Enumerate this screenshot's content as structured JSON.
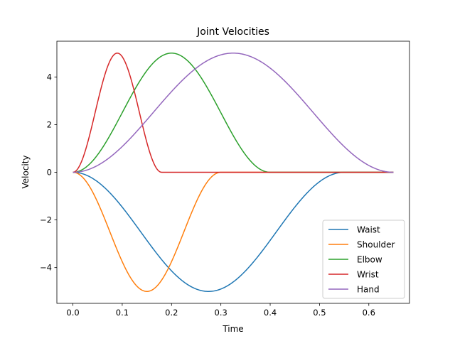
{
  "chart_data": {
    "type": "line",
    "title": "Joint Velocities",
    "xlabel": "Time",
    "ylabel": "Velocity",
    "xlim": [
      -0.0325,
      0.6825
    ],
    "ylim": [
      -5.5,
      5.5
    ],
    "xticks": [
      0.0,
      0.1,
      0.2,
      0.3,
      0.4,
      0.5,
      0.6
    ],
    "xtick_labels": [
      "0.0",
      "0.1",
      "0.2",
      "0.3",
      "0.4",
      "0.5",
      "0.6"
    ],
    "yticks": [
      -4,
      -2,
      0,
      2,
      4
    ],
    "ytick_labels": [
      "−4",
      "−2",
      "0",
      "2",
      "4"
    ],
    "grid": false,
    "legend": "lower-right",
    "x_end": 0.65,
    "series": [
      {
        "name": "Waist",
        "color": "#1f77b4",
        "peak": -5,
        "duration": 0.55
      },
      {
        "name": "Shoulder",
        "color": "#ff7f0e",
        "peak": -5,
        "duration": 0.3
      },
      {
        "name": "Elbow",
        "color": "#2ca02c",
        "peak": 5,
        "duration": 0.4
      },
      {
        "name": "Wrist",
        "color": "#d62728",
        "peak": 5,
        "duration": 0.18
      },
      {
        "name": "Hand",
        "color": "#9467bd",
        "peak": 5,
        "duration": 0.65
      }
    ]
  }
}
